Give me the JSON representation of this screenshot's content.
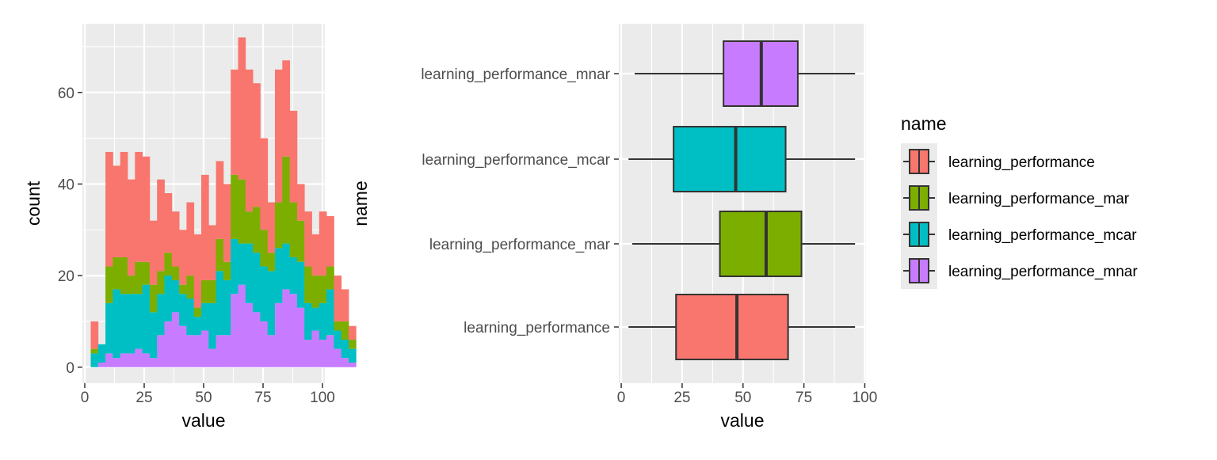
{
  "colors": {
    "learning_performance": "#F8766D",
    "learning_performance_mar": "#7CAE00",
    "learning_performance_mcar": "#00BFC4",
    "learning_performance_mnar": "#C77CFF",
    "panel_bg": "#EBEBEB",
    "grid": "#FFFFFF",
    "outline": "#333333"
  },
  "chart_data": [
    {
      "type": "bar",
      "subtype": "stacked-histogram",
      "xlabel": "value",
      "ylabel": "count",
      "xlim": [
        -1,
        101
      ],
      "ylim": [
        -3.5,
        75
      ],
      "xticks": [
        0,
        25,
        50,
        75,
        100
      ],
      "yticks": [
        0,
        20,
        40,
        60
      ],
      "grid": true,
      "bin_width": 3.1,
      "bin_start": 2.5,
      "stack_order": [
        "learning_performance_mnar",
        "learning_performance_mcar",
        "learning_performance_mar",
        "learning_performance"
      ],
      "series": [
        {
          "name": "learning_performance_mnar",
          "values": [
            0,
            1,
            3,
            2,
            3,
            3,
            4,
            3,
            2,
            7,
            10,
            12,
            9,
            7,
            7,
            8,
            4,
            7,
            7,
            16,
            18,
            14,
            12,
            10,
            7,
            14,
            17,
            16,
            13,
            6,
            8,
            6,
            7,
            4,
            2,
            1
          ]
        },
        {
          "name": "learning_performance_mcar",
          "values": [
            3,
            4,
            11,
            15,
            13,
            13,
            12,
            15,
            10,
            9,
            10,
            7,
            7,
            8,
            4,
            6,
            10,
            14,
            12,
            12,
            9,
            13,
            13,
            12,
            14,
            12,
            10,
            8,
            10,
            8,
            5,
            8,
            10,
            4,
            4,
            3
          ]
        },
        {
          "name": "learning_performance_mar",
          "values": [
            1,
            0,
            8,
            7,
            8,
            4,
            7,
            5,
            6,
            5,
            5,
            3,
            2,
            5,
            2,
            5,
            5,
            7,
            4,
            14,
            14,
            7,
            10,
            8,
            4,
            10,
            19,
            12,
            9,
            8,
            7,
            6,
            5,
            2,
            4,
            2
          ]
        },
        {
          "name": "learning_performance",
          "values": [
            6,
            0,
            25,
            20,
            23,
            21,
            24,
            23,
            14,
            20,
            13,
            12,
            12,
            16,
            16,
            23,
            12,
            17,
            17,
            23,
            31,
            31,
            27,
            20,
            11,
            29,
            21,
            20,
            8,
            12,
            9,
            14,
            11,
            10,
            7,
            3
          ]
        }
      ]
    },
    {
      "type": "boxplot",
      "orientation": "horizontal",
      "xlabel": "value",
      "ylabel": "name",
      "xlim": [
        -1,
        100.5
      ],
      "xticks": [
        0,
        25,
        50,
        75,
        100
      ],
      "grid": true,
      "categories": [
        "learning_performance",
        "learning_performance_mar",
        "learning_performance_mcar",
        "learning_performance_mnar"
      ],
      "boxes": [
        {
          "name": "learning_performance",
          "whisker_low": 3,
          "q1": 22.5,
          "median": 47.5,
          "q3": 68.5,
          "whisker_high": 96
        },
        {
          "name": "learning_performance_mar",
          "whisker_low": 4.5,
          "q1": 40.5,
          "median": 59.5,
          "q3": 74,
          "whisker_high": 96
        },
        {
          "name": "learning_performance_mcar",
          "whisker_low": 3,
          "q1": 21.5,
          "median": 47,
          "q3": 67.5,
          "whisker_high": 96
        },
        {
          "name": "learning_performance_mnar",
          "whisker_low": 5.5,
          "q1": 42,
          "median": 57.5,
          "q3": 72.5,
          "whisker_high": 96
        }
      ]
    }
  ],
  "legend": {
    "title": "name",
    "position": "right",
    "items": [
      "learning_performance",
      "learning_performance_mar",
      "learning_performance_mcar",
      "learning_performance_mnar"
    ]
  }
}
